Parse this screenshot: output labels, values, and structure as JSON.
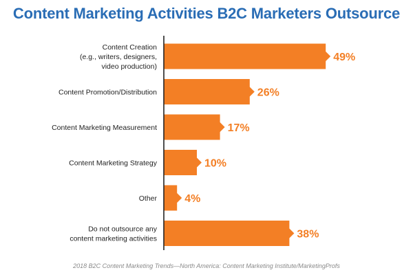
{
  "chart_data": {
    "type": "bar",
    "orientation": "horizontal",
    "title": "Content Marketing Activities B2C Marketers Outsource",
    "categories": [
      [
        "Content Creation",
        "(e.g., writers, designers,",
        "video production)"
      ],
      [
        "Content Promotion/Distribution"
      ],
      [
        "Content Marketing Measurement"
      ],
      [
        "Content Marketing Strategy"
      ],
      [
        "Other"
      ],
      [
        "Do not outsource any",
        "content marketing activities"
      ]
    ],
    "values": [
      49,
      26,
      17,
      10,
      4,
      38
    ],
    "value_labels": [
      "49%",
      "26%",
      "17%",
      "10%",
      "4%",
      "38%"
    ],
    "unit": "%",
    "xlim": [
      0,
      50
    ],
    "grid": false,
    "legend": "none",
    "bar_color": "#f37f25",
    "label_color": "#f37f25",
    "source": "2018 B2C Content Marketing Trends—North America: Content Marketing Institute/MarketingProfs"
  }
}
